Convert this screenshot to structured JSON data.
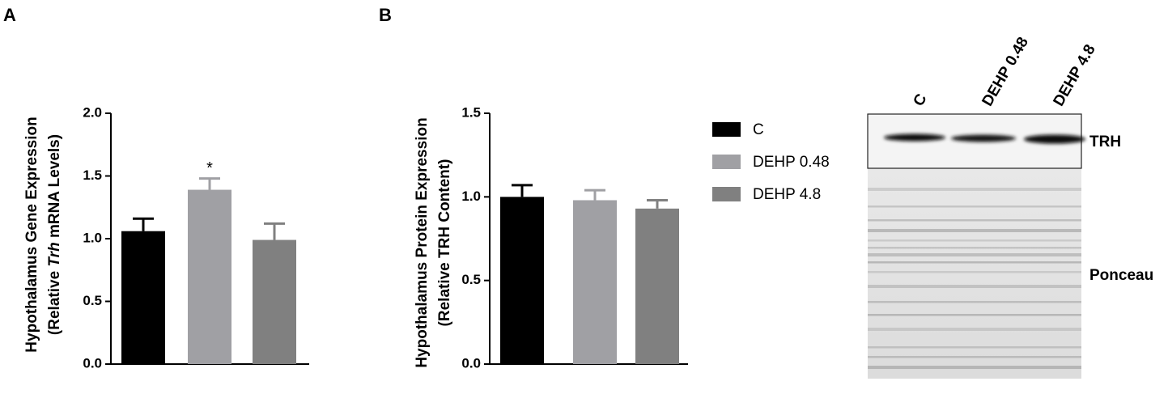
{
  "panel_labels": [
    "A",
    "B"
  ],
  "legend": {
    "items": [
      {
        "name": "C",
        "color": "#000000"
      },
      {
        "name": "DEHP 0.48",
        "color": "#a0a0a4"
      },
      {
        "name": "DEHP 4.8",
        "color": "#808080"
      }
    ]
  },
  "chart_data": [
    {
      "type": "bar",
      "ylabel": [
        "Hypothalamus Gene Expression",
        [
          "(Relative ",
          "Trh",
          " mRNA Levels)"
        ]
      ],
      "values": [
        1.06,
        1.39,
        0.99
      ],
      "errors": [
        0.1,
        0.09,
        0.13
      ],
      "annotation": "*",
      "ylim": [
        0,
        2.0
      ],
      "yticks": [
        {
          "value": 0,
          "label": "0.0"
        },
        {
          "value": 0.5,
          "label": "0.5"
        },
        {
          "value": 1.0,
          "label": "1.0"
        },
        {
          "value": 1.5,
          "label": "1.5"
        },
        {
          "value": 2.0,
          "label": "2.0"
        }
      ]
    },
    {
      "type": "bar",
      "ylabel": [
        "Hypothalamus Protein Expression",
        [
          "(Relative TRH Content)"
        ]
      ],
      "values": [
        1.0,
        0.98,
        0.93
      ],
      "errors": [
        0.07,
        0.06,
        0.05
      ],
      "ylim": [
        0,
        1.5
      ],
      "yticks": [
        {
          "value": 0,
          "label": "0.0"
        },
        {
          "value": 0.5,
          "label": "0.5"
        },
        {
          "value": 1.0,
          "label": "1.0"
        },
        {
          "value": 1.5,
          "label": "1.5"
        }
      ]
    }
  ],
  "blot": {
    "lanes": [
      "C",
      "DEHP 0.48",
      "DEHP 4.8"
    ],
    "labels": [
      "TRH",
      "Ponceau"
    ]
  }
}
